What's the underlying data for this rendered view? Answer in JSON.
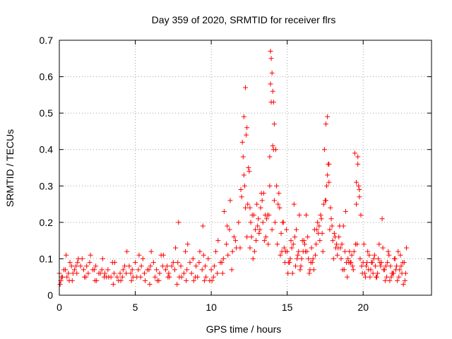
{
  "chart_data": {
    "type": "scatter",
    "title": "Day 359 of 2020, SRMTID for receiver flrs",
    "xlabel": "GPS time / hours",
    "ylabel": "SRMTID / TECUs",
    "xlim": [
      0,
      24.5
    ],
    "ylim": [
      0,
      0.7
    ],
    "xticks": [
      "0",
      "5",
      "10",
      "15",
      "20"
    ],
    "xtick_values": [
      0,
      5,
      10,
      15,
      20
    ],
    "yticks": [
      "0",
      "0.1",
      "0.2",
      "0.3",
      "0.4",
      "0.5",
      "0.6",
      "0.7"
    ],
    "ytick_values": [
      0,
      0.1,
      0.2,
      0.3,
      0.4,
      0.5,
      0.6,
      0.7
    ],
    "grid": true,
    "marker": "+",
    "color": "#ff0000",
    "series": [
      {
        "name": "SRMTID",
        "x": [
          0.0,
          0.2,
          0.4,
          0.6,
          0.8,
          1.0,
          1.2,
          1.4,
          1.6,
          1.8,
          2.0,
          2.2,
          2.4,
          2.6,
          2.8,
          3.0,
          3.2,
          3.4,
          3.6,
          3.8,
          4.0,
          4.2,
          4.4,
          4.6,
          4.8,
          5.0,
          5.2,
          5.4,
          5.6,
          5.8,
          6.0,
          6.2,
          6.4,
          6.6,
          6.8,
          7.0,
          7.2,
          7.4,
          7.6,
          7.8,
          8.0,
          8.2,
          8.4,
          8.6,
          8.8,
          9.0,
          9.2,
          9.4,
          9.6,
          9.8,
          10.0,
          10.2,
          10.4,
          10.6,
          10.8,
          11.0,
          11.2,
          11.4,
          11.6,
          11.8,
          12.0,
          12.2,
          12.4,
          12.6,
          12.8,
          13.0,
          13.2,
          13.4,
          13.6,
          13.8,
          14.0,
          14.2,
          14.4,
          14.6,
          14.8,
          15.0,
          15.2,
          15.4,
          15.6,
          15.8,
          16.0,
          16.2,
          16.4,
          16.6,
          16.8,
          17.0,
          17.2,
          17.4,
          17.6,
          17.8,
          18.0,
          18.2,
          18.4,
          18.6,
          18.8,
          19.0,
          19.2,
          19.4,
          19.6,
          19.8,
          20.0,
          20.2,
          20.4,
          20.6,
          20.8,
          21.0,
          21.2,
          21.4,
          21.6,
          21.8,
          22.0,
          22.2,
          22.4,
          22.6,
          22.8,
          0.1,
          0.3,
          0.5,
          0.7,
          0.9,
          1.1,
          1.5,
          1.9,
          2.3,
          2.7,
          3.1,
          3.5,
          3.9,
          4.3,
          4.7,
          5.1,
          5.5,
          5.9,
          6.3,
          6.7,
          7.1,
          7.5,
          7.9,
          8.3,
          8.7,
          9.1,
          9.5,
          9.9,
          10.3,
          10.7,
          11.1,
          11.5,
          11.9,
          12.1,
          12.3,
          12.5,
          12.7,
          12.9,
          13.1,
          13.3,
          13.5,
          13.7,
          13.9,
          14.1,
          14.3,
          14.5,
          14.7,
          14.9,
          15.1,
          15.3,
          15.5,
          15.7,
          15.9,
          16.1,
          16.3,
          16.5,
          16.7,
          16.9,
          17.1,
          17.3,
          17.5,
          17.7,
          17.9,
          18.1,
          18.3,
          18.5,
          18.7,
          18.9,
          19.1,
          19.3,
          19.5,
          19.7,
          19.9,
          20.1,
          20.3,
          20.5,
          20.7,
          20.9,
          21.1,
          21.3,
          21.5,
          21.7,
          21.9,
          22.1,
          22.3,
          22.5,
          22.7,
          0.05,
          0.45,
          0.85,
          1.25,
          1.65,
          2.05,
          2.45,
          2.85,
          3.25,
          3.65,
          4.05,
          4.45,
          4.85,
          5.25,
          5.65,
          6.05,
          6.45,
          6.85,
          7.25,
          7.65,
          7.85,
          8.05,
          8.45,
          8.85,
          9.25,
          9.45,
          9.65,
          10.05,
          10.45,
          10.85,
          11.05,
          11.25,
          11.65,
          12.05,
          12.15,
          12.25,
          12.35,
          12.45,
          12.55,
          12.65,
          12.85,
          13.05,
          13.25,
          13.45,
          13.65,
          13.85,
          13.9,
          13.95,
          14.0,
          14.05,
          14.1,
          14.15,
          14.25,
          14.45,
          14.65,
          14.85,
          15.05,
          15.25,
          15.45,
          15.65,
          15.85,
          16.05,
          16.25,
          16.45,
          16.65,
          16.85,
          17.05,
          17.25,
          17.45,
          17.55,
          17.65,
          17.75,
          17.85,
          18.05,
          18.25,
          18.45,
          18.65,
          18.85,
          19.05,
          19.25,
          19.45,
          19.55,
          19.65,
          19.75,
          19.85,
          20.05,
          20.25,
          20.45,
          20.65,
          20.85,
          21.05,
          21.25,
          21.45,
          21.65,
          21.85,
          22.05,
          22.25,
          22.45,
          22.65,
          22.85,
          0.15,
          0.65,
          1.15,
          1.75,
          2.35,
          2.95,
          3.55,
          4.15,
          4.75,
          5.35,
          5.95,
          6.55,
          7.15,
          7.75,
          8.35,
          8.95,
          9.55,
          10.15,
          10.75,
          11.35,
          11.95,
          12.15,
          12.25,
          12.35,
          12.55,
          12.75,
          12.95,
          13.15,
          13.35,
          13.55,
          13.75,
          13.85,
          13.95,
          14.05,
          14.15,
          14.35,
          14.55,
          14.75,
          14.95,
          15.15,
          15.35,
          15.55,
          15.75,
          15.95,
          16.15,
          16.35,
          16.55,
          16.75,
          16.95,
          17.15,
          17.35,
          17.55,
          17.65,
          17.75,
          17.95,
          18.15,
          18.35,
          18.55,
          18.75,
          18.95,
          19.15,
          19.35,
          19.55,
          19.65,
          19.75,
          19.95,
          20.15,
          20.35,
          20.55,
          20.75,
          20.95,
          21.15,
          21.35,
          21.55,
          21.75,
          21.95,
          22.15,
          22.35,
          22.55,
          22.75
        ],
        "y": [
          0.06,
          0.05,
          0.07,
          0.06,
          0.08,
          0.07,
          0.09,
          0.08,
          0.07,
          0.08,
          0.09,
          0.07,
          0.08,
          0.06,
          0.07,
          0.06,
          0.07,
          0.05,
          0.06,
          0.05,
          0.06,
          0.07,
          0.06,
          0.08,
          0.07,
          0.09,
          0.07,
          0.08,
          0.06,
          0.07,
          0.08,
          0.09,
          0.07,
          0.06,
          0.08,
          0.07,
          0.06,
          0.08,
          0.07,
          0.09,
          0.08,
          0.06,
          0.07,
          0.09,
          0.1,
          0.08,
          0.09,
          0.07,
          0.08,
          0.1,
          0.07,
          0.08,
          0.06,
          0.09,
          0.1,
          0.14,
          0.18,
          0.12,
          0.15,
          0.2,
          0.27,
          0.3,
          0.25,
          0.2,
          0.22,
          0.25,
          0.18,
          0.2,
          0.16,
          0.22,
          0.18,
          0.2,
          0.25,
          0.17,
          0.13,
          0.12,
          0.1,
          0.14,
          0.18,
          0.22,
          0.15,
          0.12,
          0.1,
          0.13,
          0.18,
          0.2,
          0.22,
          0.25,
          0.3,
          0.18,
          0.15,
          0.13,
          0.16,
          0.14,
          0.12,
          0.1,
          0.09,
          0.12,
          0.14,
          0.1,
          0.09,
          0.08,
          0.11,
          0.09,
          0.08,
          0.1,
          0.09,
          0.07,
          0.09,
          0.08,
          0.06,
          0.08,
          0.07,
          0.09,
          0.06,
          0.04,
          0.07,
          0.05,
          0.09,
          0.06,
          0.08,
          0.1,
          0.06,
          0.07,
          0.06,
          0.05,
          0.09,
          0.04,
          0.08,
          0.06,
          0.05,
          0.1,
          0.07,
          0.05,
          0.11,
          0.08,
          0.09,
          0.05,
          0.12,
          0.06,
          0.05,
          0.11,
          0.04,
          0.12,
          0.09,
          0.11,
          0.16,
          0.13,
          0.38,
          0.44,
          0.34,
          0.22,
          0.18,
          0.21,
          0.28,
          0.15,
          0.22,
          0.58,
          0.4,
          0.3,
          0.24,
          0.2,
          0.12,
          0.09,
          0.13,
          0.16,
          0.11,
          0.08,
          0.15,
          0.12,
          0.07,
          0.1,
          0.14,
          0.19,
          0.17,
          0.26,
          0.36,
          0.21,
          0.17,
          0.11,
          0.13,
          0.19,
          0.09,
          0.12,
          0.08,
          0.14,
          0.3,
          0.08,
          0.06,
          0.12,
          0.07,
          0.1,
          0.05,
          0.09,
          0.13,
          0.08,
          0.11,
          0.06,
          0.1,
          0.12,
          0.08,
          0.09,
          0.03,
          0.11,
          0.04,
          0.1,
          0.05,
          0.11,
          0.04,
          0.1,
          0.05,
          0.09,
          0.04,
          0.12,
          0.05,
          0.11,
          0.04,
          0.12,
          0.04,
          0.11,
          0.05,
          0.13,
          0.2,
          0.05,
          0.14,
          0.04,
          0.12,
          0.19,
          0.05,
          0.04,
          0.15,
          0.23,
          0.19,
          0.26,
          0.13,
          0.42,
          0.49,
          0.57,
          0.46,
          0.35,
          0.24,
          0.16,
          0.12,
          0.19,
          0.24,
          0.28,
          0.21,
          0.38,
          0.67,
          0.65,
          0.61,
          0.56,
          0.53,
          0.47,
          0.4,
          0.28,
          0.12,
          0.09,
          0.06,
          0.15,
          0.25,
          0.1,
          0.07,
          0.12,
          0.22,
          0.06,
          0.09,
          0.11,
          0.17,
          0.21,
          0.4,
          0.47,
          0.49,
          0.36,
          0.24,
          0.1,
          0.14,
          0.19,
          0.07,
          0.23,
          0.09,
          0.11,
          0.39,
          0.31,
          0.36,
          0.27,
          0.22,
          0.14,
          0.09,
          0.05,
          0.06,
          0.05,
          0.14,
          0.21,
          0.04,
          0.12,
          0.05,
          0.1,
          0.04,
          0.11,
          0.03,
          0.13,
          0.05,
          0.04,
          0.06,
          0.05,
          0.04,
          0.05,
          0.03,
          0.05,
          0.04,
          0.05,
          0.03,
          0.04,
          0.05,
          0.03,
          0.04,
          0.05,
          0.04,
          0.05,
          0.06,
          0.07,
          0.29,
          0.33,
          0.24,
          0.16,
          0.13,
          0.1,
          0.15,
          0.17,
          0.26,
          0.22,
          0.14,
          0.3,
          0.53,
          0.41,
          0.26,
          0.14,
          0.11,
          0.2,
          0.18,
          0.09,
          0.06,
          0.08,
          0.12,
          0.1,
          0.14,
          0.16,
          0.09,
          0.07,
          0.18,
          0.15,
          0.12,
          0.26,
          0.33,
          0.31,
          0.19,
          0.16,
          0.13,
          0.1,
          0.07,
          0.05,
          0.09,
          0.07,
          0.25,
          0.38,
          0.29,
          0.06,
          0.05,
          0.07,
          0.09,
          0.11,
          0.06,
          0.08,
          0.07,
          0.05,
          0.04,
          0.06,
          0.07,
          0.05,
          0.06,
          0.04
        ]
      }
    ]
  }
}
